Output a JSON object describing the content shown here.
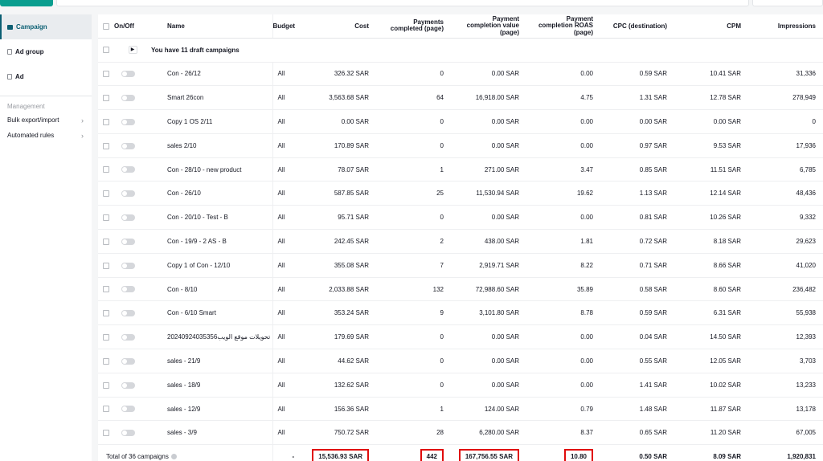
{
  "sidebar": {
    "nav": [
      {
        "label": "Campaign",
        "icon": "folder-icon",
        "active": true
      },
      {
        "label": "Ad group",
        "icon": "document-icon",
        "active": false
      },
      {
        "label": "Ad",
        "icon": "document-icon",
        "active": false
      }
    ],
    "section_title": "Management",
    "menu": [
      {
        "label": "Bulk export/import"
      },
      {
        "label": "Automated rules"
      }
    ]
  },
  "table": {
    "headers": {
      "onoff": "On/Off",
      "name": "Name",
      "budget": "Budget",
      "cost": "Cost",
      "payments_1": "Payments",
      "payments_2": "completed (page)",
      "pcv_1": "Payment",
      "pcv_2": "completion value",
      "pcv_3": "(page)",
      "roas_1": "Payment",
      "roas_2": "completion ROAS",
      "roas_3": "(page)",
      "cpc": "CPC (destination)",
      "cpm": "CPM",
      "impressions": "Impressions"
    },
    "draft_row": "You have 11 draft campaigns",
    "rows": [
      {
        "name": "Con - 26/12",
        "budget": "All",
        "cost": "326.32 SAR",
        "payments": "0",
        "value": "0.00 SAR",
        "roas": "0.00",
        "cpc": "0.59 SAR",
        "cpm": "10.41 SAR",
        "impressions": "31,336"
      },
      {
        "name": "Smart 26con",
        "budget": "All",
        "cost": "3,563.68 SAR",
        "payments": "64",
        "value": "16,918.00 SAR",
        "roas": "4.75",
        "cpc": "1.31 SAR",
        "cpm": "12.78 SAR",
        "impressions": "278,949"
      },
      {
        "name": "Copy 1 OS 2/11",
        "budget": "All",
        "cost": "0.00 SAR",
        "payments": "0",
        "value": "0.00 SAR",
        "roas": "0.00",
        "cpc": "0.00 SAR",
        "cpm": "0.00 SAR",
        "impressions": "0"
      },
      {
        "name": "sales 2/10",
        "budget": "All",
        "cost": "170.89 SAR",
        "payments": "0",
        "value": "0.00 SAR",
        "roas": "0.00",
        "cpc": "0.97 SAR",
        "cpm": "9.53 SAR",
        "impressions": "17,936"
      },
      {
        "name": "Con - 28/10 - new product",
        "budget": "All",
        "cost": "78.07 SAR",
        "payments": "1",
        "value": "271.00 SAR",
        "roas": "3.47",
        "cpc": "0.85 SAR",
        "cpm": "11.51 SAR",
        "impressions": "6,785"
      },
      {
        "name": "Con - 26/10",
        "budget": "All",
        "cost": "587.85 SAR",
        "payments": "25",
        "value": "11,530.94 SAR",
        "roas": "19.62",
        "cpc": "1.13 SAR",
        "cpm": "12.14 SAR",
        "impressions": "48,436"
      },
      {
        "name": "Con - 20/10 - Test - B",
        "budget": "All",
        "cost": "95.71 SAR",
        "payments": "0",
        "value": "0.00 SAR",
        "roas": "0.00",
        "cpc": "0.81 SAR",
        "cpm": "10.26 SAR",
        "impressions": "9,332"
      },
      {
        "name": "Con - 19/9 - 2 AS - B",
        "budget": "All",
        "cost": "242.45 SAR",
        "payments": "2",
        "value": "438.00 SAR",
        "roas": "1.81",
        "cpc": "0.72 SAR",
        "cpm": "8.18 SAR",
        "impressions": "29,623"
      },
      {
        "name": "Copy 1 of Con - 12/10",
        "budget": "All",
        "cost": "355.08 SAR",
        "payments": "7",
        "value": "2,919.71 SAR",
        "roas": "8.22",
        "cpc": "0.71 SAR",
        "cpm": "8.66 SAR",
        "impressions": "41,020"
      },
      {
        "name": "Con - 8/10",
        "budget": "All",
        "cost": "2,033.88 SAR",
        "payments": "132",
        "value": "72,988.60 SAR",
        "roas": "35.89",
        "cpc": "0.58 SAR",
        "cpm": "8.60 SAR",
        "impressions": "236,482"
      },
      {
        "name": "Con - 6/10 Smart",
        "budget": "All",
        "cost": "353.24 SAR",
        "payments": "9",
        "value": "3,101.80 SAR",
        "roas": "8.78",
        "cpc": "0.59 SAR",
        "cpm": "6.31 SAR",
        "impressions": "55,938"
      },
      {
        "name": "تحويلات موقع الويب20240924035356",
        "budget": "All",
        "cost": "179.69 SAR",
        "payments": "0",
        "value": "0.00 SAR",
        "roas": "0.00",
        "cpc": "0.04 SAR",
        "cpm": "14.50 SAR",
        "impressions": "12,393"
      },
      {
        "name": "sales - 21/9",
        "budget": "All",
        "cost": "44.62 SAR",
        "payments": "0",
        "value": "0.00 SAR",
        "roas": "0.00",
        "cpc": "0.55 SAR",
        "cpm": "12.05 SAR",
        "impressions": "3,703"
      },
      {
        "name": "sales - 18/9",
        "budget": "All",
        "cost": "132.62 SAR",
        "payments": "0",
        "value": "0.00 SAR",
        "roas": "0.00",
        "cpc": "1.41 SAR",
        "cpm": "10.02 SAR",
        "impressions": "13,233"
      },
      {
        "name": "sales - 12/9",
        "budget": "All",
        "cost": "156.36 SAR",
        "payments": "1",
        "value": "124.00 SAR",
        "roas": "0.79",
        "cpc": "1.48 SAR",
        "cpm": "11.87 SAR",
        "impressions": "13,178"
      },
      {
        "name": "sales - 3/9",
        "budget": "All",
        "cost": "750.72 SAR",
        "payments": "28",
        "value": "6,280.00 SAR",
        "roas": "8.37",
        "cpc": "0.65 SAR",
        "cpm": "11.20 SAR",
        "impressions": "67,005"
      }
    ],
    "total": {
      "label": "Total of 36 campaigns",
      "budget": "-",
      "cost": "15,536.93 SAR",
      "payments": "442",
      "value": "167,756.55 SAR",
      "roas": "10.80",
      "cpc": "0.50 SAR",
      "cpm": "8.09 SAR",
      "impressions": "1,920,831"
    }
  },
  "colors": {
    "accent": "#0b5f73",
    "create_button": "#0a9e8f",
    "highlight_box": "#e00b0b"
  }
}
